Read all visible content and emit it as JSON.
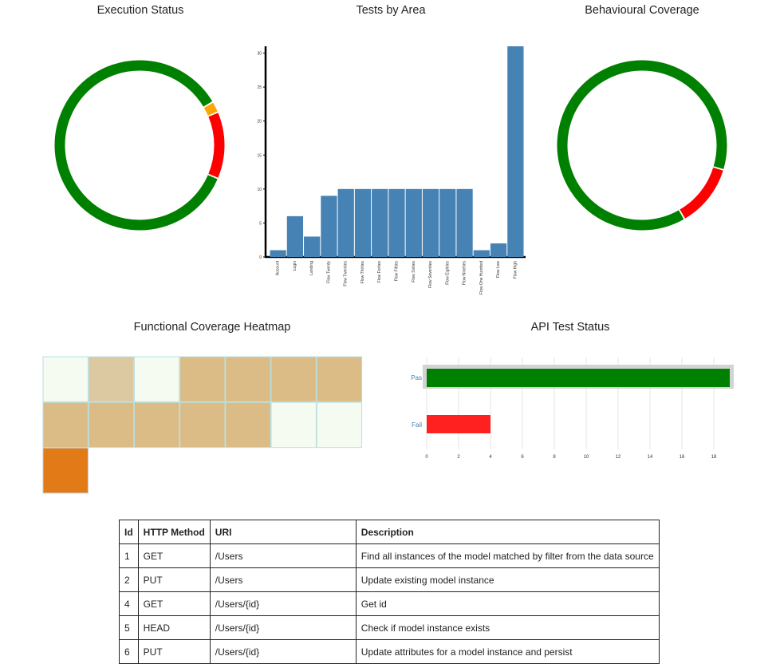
{
  "titles": {
    "execution": "Execution Status",
    "area": "Tests by Area",
    "behaviour": "Behavioural Coverage",
    "heatmap": "Functional Coverage Heatmap",
    "api": "API Test Status"
  },
  "chart_data": [
    {
      "type": "pie",
      "title": "Execution Status",
      "values": [
        80,
        2,
        12
      ],
      "colors": [
        "#008000",
        "#ffa500",
        "#ff0000"
      ]
    },
    {
      "type": "bar",
      "title": "Tests by Area",
      "categories": [
        "Account",
        "Login",
        "Landing",
        "Flow Twenty",
        "Flow Twenties",
        "Flow Thirties",
        "Flow Forties",
        "Flow Fifties",
        "Flow Sixties",
        "Flow Seventies",
        "Flow Eighties",
        "Flow Nineties",
        "Flow One Hundred",
        "Flow Low",
        "Flow High"
      ],
      "values": [
        1,
        6,
        3,
        9,
        10,
        10,
        10,
        10,
        10,
        10,
        10,
        10,
        1,
        2,
        31
      ],
      "ylim": [
        0,
        31
      ],
      "yticks": [
        0,
        5,
        10,
        15,
        20,
        25,
        30
      ],
      "color": "#4682b4"
    },
    {
      "type": "pie",
      "title": "Behavioural Coverage",
      "values": [
        88,
        12
      ],
      "colors": [
        "#008000",
        "#ff0000"
      ]
    },
    {
      "type": "heatmap",
      "title": "Functional Coverage Heatmap",
      "rows": [
        [
          0,
          0.4,
          0,
          1,
          1,
          1,
          1
        ],
        [
          1,
          1,
          1,
          1,
          1,
          0,
          0
        ],
        [
          2
        ]
      ],
      "colors": [
        "#f5fbf0",
        "#dcc9a2",
        "#dbbc86",
        "#e17a17"
      ]
    },
    {
      "type": "bar",
      "title": "API Test Status",
      "orientation": "horizontal",
      "categories": [
        "Pass",
        "Fail"
      ],
      "category_display": [
        "Pas",
        "Fail"
      ],
      "values": [
        19,
        4
      ],
      "colors": [
        "#008000",
        "#ff2020"
      ],
      "xlim": [
        0,
        19
      ],
      "xticks": [
        0,
        2,
        4,
        6,
        8,
        10,
        12,
        14,
        16,
        18
      ]
    }
  ],
  "table": {
    "headers": [
      "Id",
      "HTTP Method",
      "URI",
      "Description"
    ],
    "rows": [
      [
        "1",
        "GET",
        "/Users",
        "Find all instances of the model matched by filter from the data source"
      ],
      [
        "2",
        "PUT",
        "/Users",
        "Update existing model instance"
      ],
      [
        "4",
        "GET",
        "/Users/{id}",
        "Get id"
      ],
      [
        "5",
        "HEAD",
        "/Users/{id}",
        "Check if model instance exists"
      ],
      [
        "6",
        "PUT",
        "/Users/{id}",
        "Update attributes for a model instance and persist"
      ]
    ]
  }
}
